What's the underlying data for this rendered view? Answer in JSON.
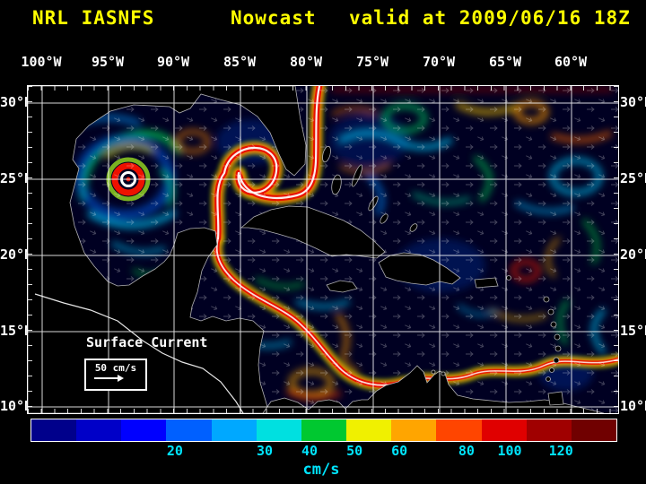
{
  "header": {
    "model": "NRL IASNFS",
    "product": "Nowcast",
    "valid": "valid at 2009/06/16 18Z"
  },
  "axes": {
    "lon_labels": [
      "100°W",
      "95°W",
      "90°W",
      "85°W",
      "80°W",
      "75°W",
      "70°W",
      "65°W",
      "60°W"
    ],
    "lat_labels": [
      "30°N",
      "25°N",
      "20°N",
      "15°N",
      "10°N"
    ]
  },
  "map": {
    "annotation": "Surface Current",
    "scale_label": "50 cm/s"
  },
  "colorbar": {
    "unit": "cm/s",
    "segments": [
      "#00008b",
      "#0000c8",
      "#0000ff",
      "#0060ff",
      "#00a8ff",
      "#00e0e0",
      "#00c830",
      "#f0f000",
      "#ffa500",
      "#ff4500",
      "#e00000",
      "#a00000",
      "#700000"
    ],
    "ticks": [
      {
        "label": "20",
        "pos": 0.246
      },
      {
        "label": "30",
        "pos": 0.4
      },
      {
        "label": "40",
        "pos": 0.477
      },
      {
        "label": "50",
        "pos": 0.554
      },
      {
        "label": "60",
        "pos": 0.631
      },
      {
        "label": "80",
        "pos": 0.746
      },
      {
        "label": "100",
        "pos": 0.82
      },
      {
        "label": "120",
        "pos": 0.908
      }
    ]
  },
  "colors": {
    "title_text": "#ffff00",
    "axis_text": "#ffffff",
    "colorbar_text": "#00e5ff"
  }
}
